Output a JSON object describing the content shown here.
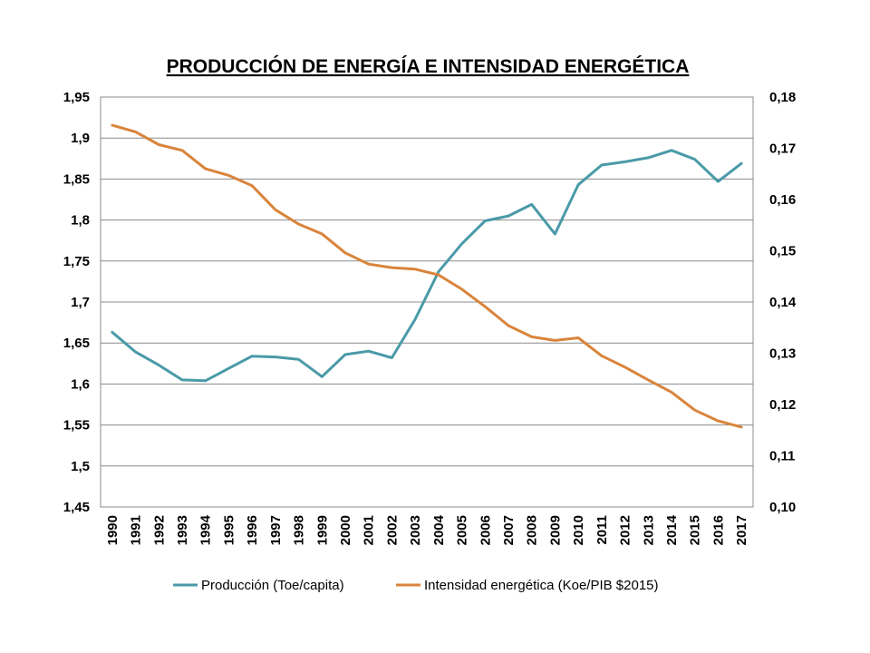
{
  "chart_data": {
    "type": "line",
    "title": "PRODUCCIÓN DE ENERGÍA E INTENSIDAD ENERGÉTICA",
    "categories": [
      "1990",
      "1991",
      "1992",
      "1993",
      "1994",
      "1995",
      "1996",
      "1997",
      "1998",
      "1999",
      "2000",
      "2001",
      "2002",
      "2003",
      "2004",
      "2005",
      "2006",
      "2007",
      "2008",
      "2009",
      "2010",
      "2011",
      "2012",
      "2013",
      "2014",
      "2015",
      "2016",
      "2017"
    ],
    "left_axis": {
      "ylim": [
        1.45,
        1.95
      ],
      "ticks": [
        1.45,
        1.5,
        1.55,
        1.6,
        1.65,
        1.7,
        1.75,
        1.8,
        1.85,
        1.9,
        1.95
      ],
      "tick_labels": [
        "1,45",
        "1,5",
        "1,55",
        "1,6",
        "1,65",
        "1,7",
        "1,75",
        "1,8",
        "1,85",
        "1,9",
        "1,95"
      ]
    },
    "right_axis": {
      "ylim": [
        0.1,
        0.18
      ],
      "ticks": [
        0.1,
        0.11,
        0.12,
        0.13,
        0.14,
        0.15,
        0.16,
        0.17,
        0.18
      ],
      "tick_labels": [
        "0,10",
        "0,11",
        "0,12",
        "0,13",
        "0,14",
        "0,15",
        "0,16",
        "0,17",
        "0,18"
      ]
    },
    "grid": true,
    "legend_position": "bottom",
    "series": [
      {
        "name": "Producción (Toe/capita)",
        "axis": "left",
        "color": "#4a9aa8",
        "values": [
          1.663,
          1.639,
          1.623,
          1.605,
          1.604,
          1.619,
          1.634,
          1.633,
          1.63,
          1.609,
          1.636,
          1.64,
          1.632,
          1.679,
          1.737,
          1.771,
          1.799,
          1.805,
          1.819,
          1.783,
          1.843,
          1.867,
          1.871,
          1.876,
          1.885,
          1.874,
          1.847,
          1.869
        ]
      },
      {
        "name": "Intensidad energética (Koe/PIB $2015)",
        "axis": "right",
        "color": "#d9843c",
        "values": [
          0.1745,
          0.1732,
          0.1707,
          0.1696,
          0.166,
          0.1647,
          0.1627,
          0.158,
          0.1552,
          0.1533,
          0.1496,
          0.1474,
          0.1467,
          0.1464,
          0.1453,
          0.1425,
          0.1391,
          0.1354,
          0.1332,
          0.1325,
          0.133,
          0.1295,
          0.1273,
          0.1248,
          0.1224,
          0.1189,
          0.1168,
          0.1156
        ]
      }
    ]
  }
}
